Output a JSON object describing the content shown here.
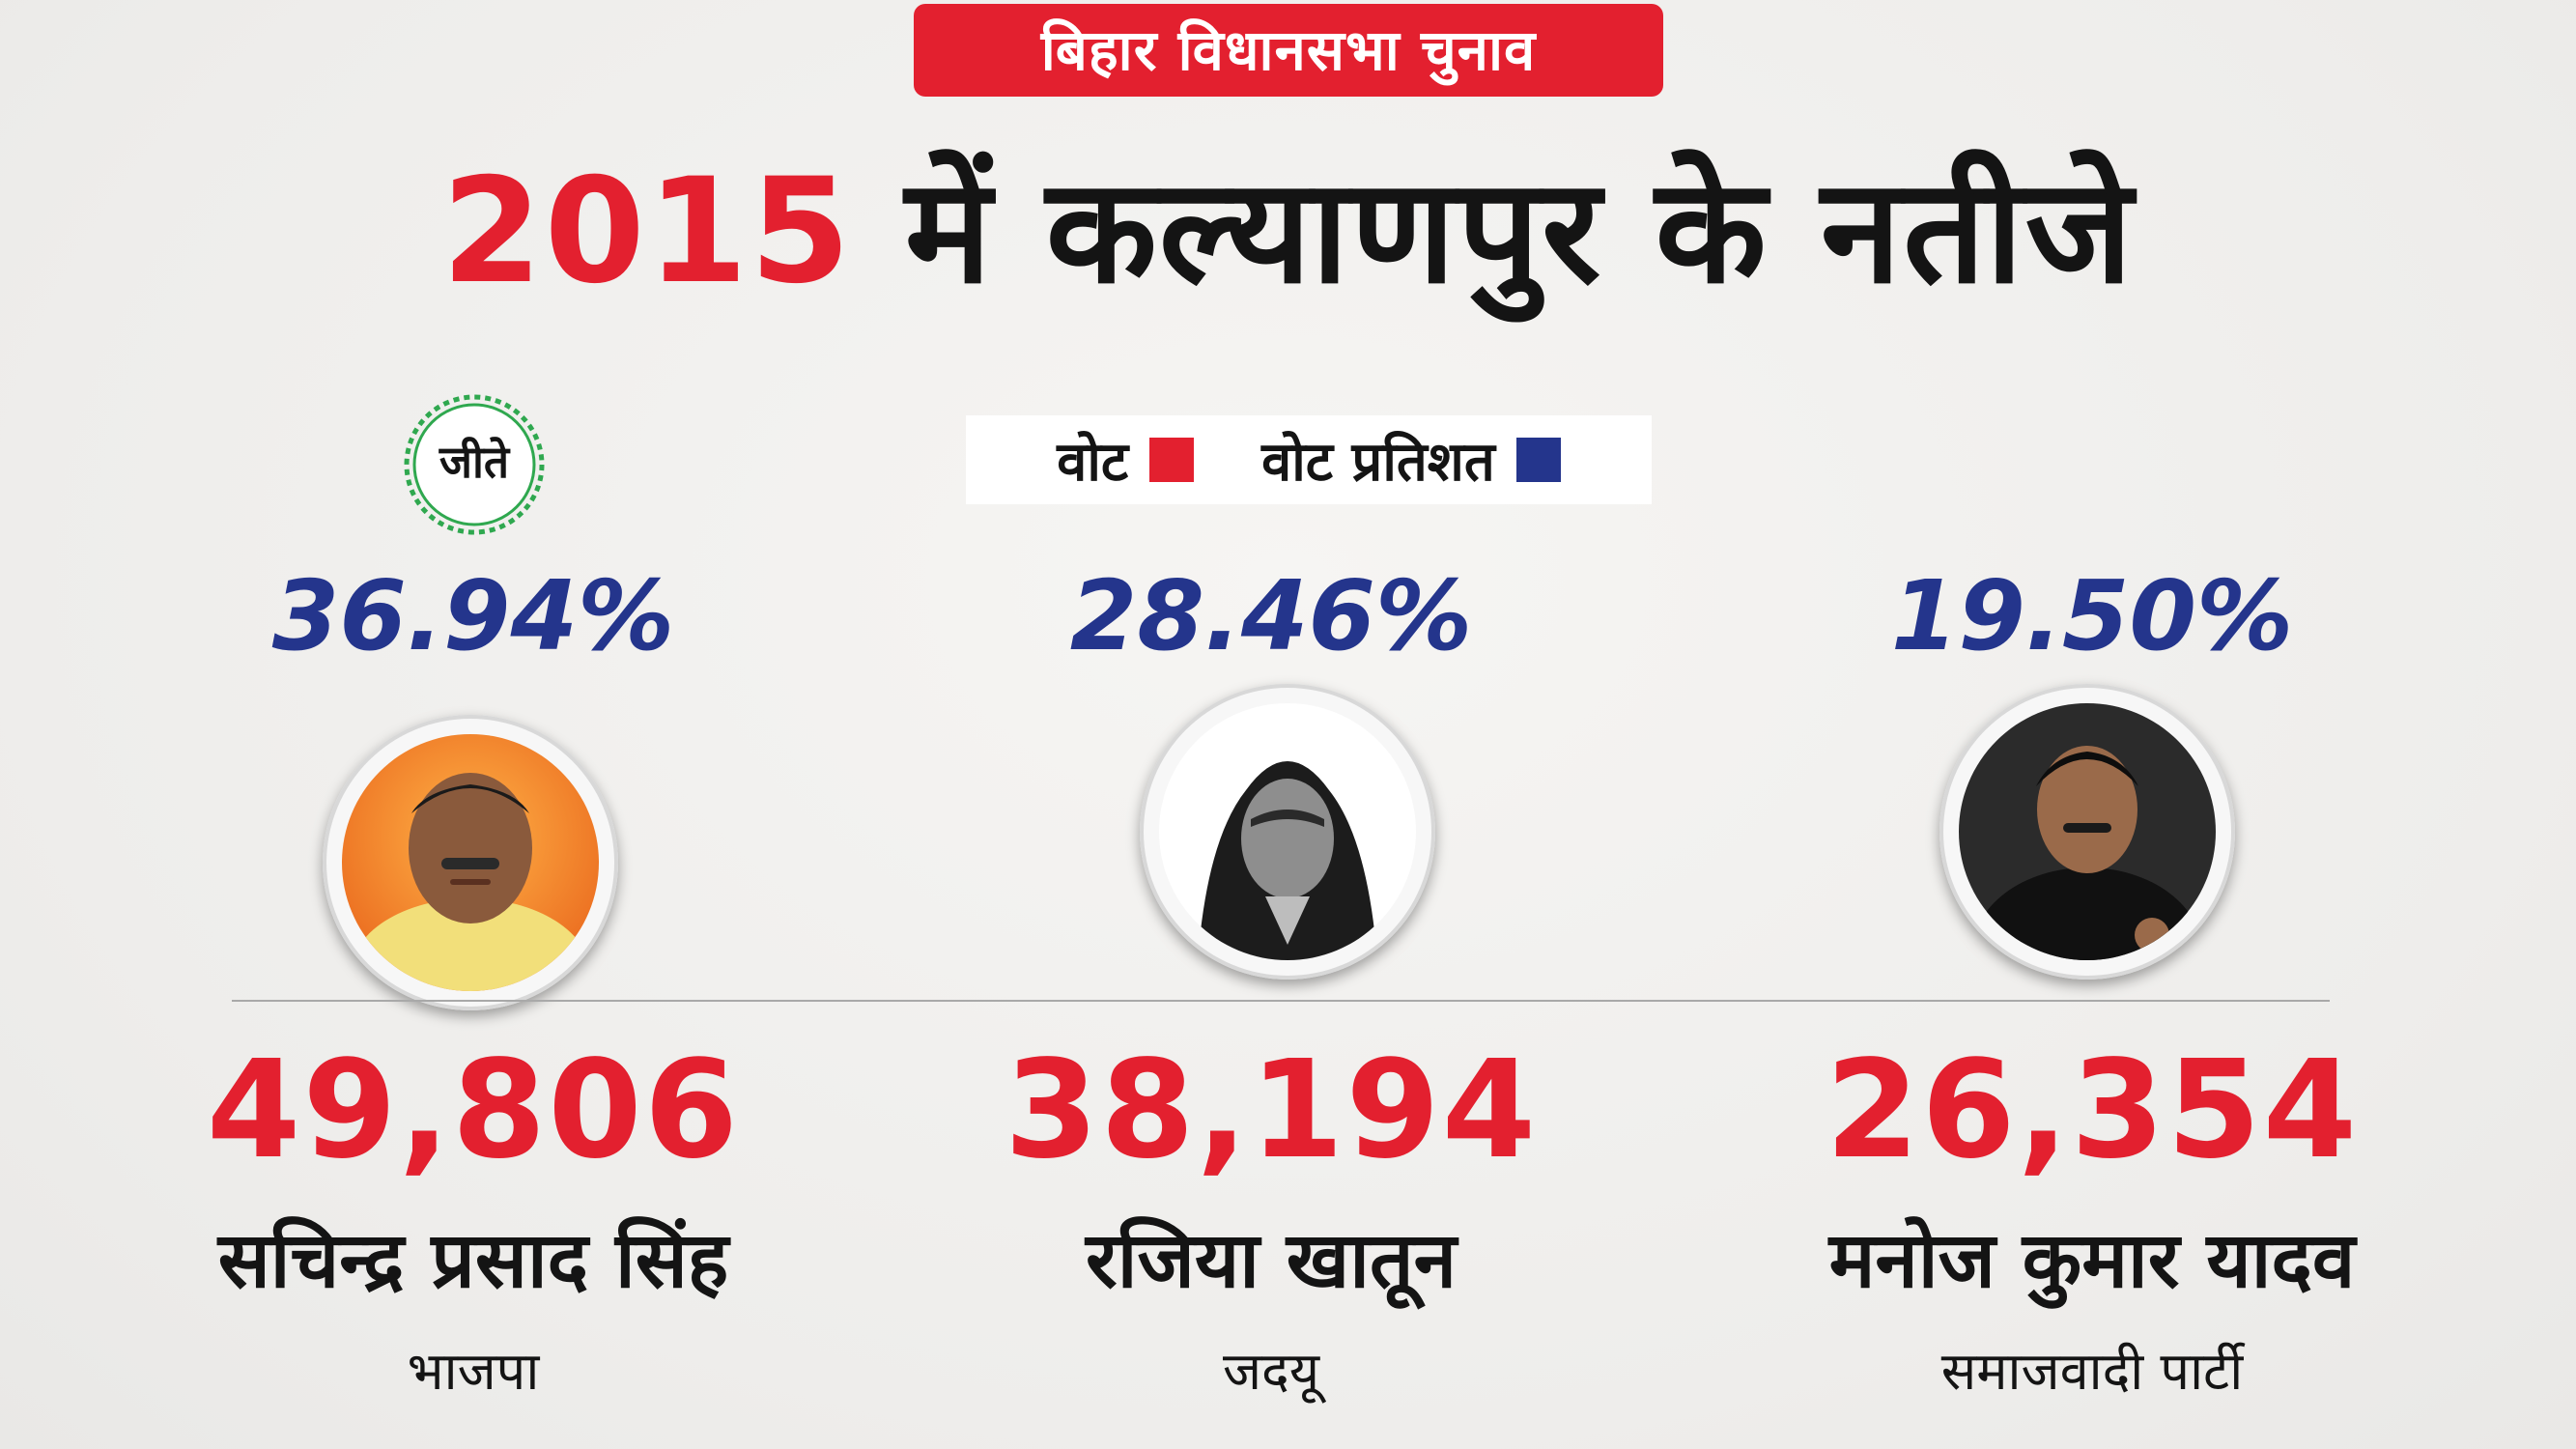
{
  "header_label": "बिहार विधानसभा चुनाव",
  "headline": {
    "year": "2015",
    "text": "में कल्याणपुर के नतीजे"
  },
  "legend": {
    "votes_label": "वोट",
    "percent_label": "वोट प्रतिशत",
    "votes_color": "#e3202f",
    "percent_color": "#24358c"
  },
  "winner_badge": "जीते",
  "candidates": [
    {
      "percent": "36.94%",
      "votes": "49,806",
      "name": "सचिन्द्र प्रसाद सिंह",
      "party": "भाजपा",
      "winner": true
    },
    {
      "percent": "28.46%",
      "votes": "38,194",
      "name": "रजिया खातून",
      "party": "जदयू",
      "winner": false
    },
    {
      "percent": "19.50%",
      "votes": "26,354",
      "name": "मनोज कुमार यादव",
      "party": "समाजवादी पार्टी",
      "winner": false
    }
  ],
  "colors": {
    "accent_red": "#e3202f",
    "accent_blue": "#24358c",
    "winner_green": "#2fa84f",
    "text_dark": "#141414"
  }
}
